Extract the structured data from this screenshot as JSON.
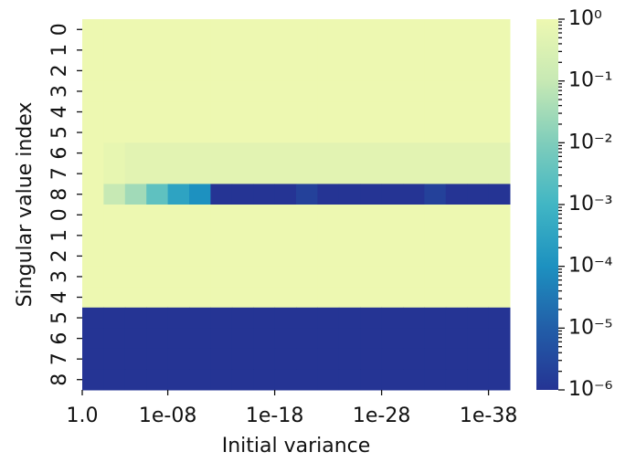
{
  "chart_data": {
    "type": "heatmap",
    "xlabel": "Initial variance",
    "ylabel": "Singular value index",
    "rows": [
      "0",
      "1",
      "2",
      "3",
      "4",
      "5",
      "6",
      "7",
      "8",
      "0",
      "1",
      "2",
      "3",
      "4",
      "5",
      "6",
      "7",
      "8"
    ],
    "xlim": [
      0,
      20
    ],
    "xticks": [
      {
        "value": 0,
        "label": "1.0"
      },
      {
        "value": 4,
        "label": "1e-08"
      },
      {
        "value": 9,
        "label": "1e-18"
      },
      {
        "value": 14,
        "label": "1e-28"
      },
      {
        "value": 19,
        "label": "1e-38"
      }
    ],
    "colormap": [
      "#edf8b1",
      "#c7e9b4",
      "#7fcdbb",
      "#41b6c4",
      "#1d91c0",
      "#225ea8",
      "#253494"
    ],
    "color_log": true,
    "clim": [
      1e-06,
      1
    ],
    "cticks": [
      {
        "value": 1,
        "label": "10⁰"
      },
      {
        "value": 0.1,
        "label": "10⁻¹"
      },
      {
        "value": 0.01,
        "label": "10⁻²"
      },
      {
        "value": 0.001,
        "label": "10⁻³"
      },
      {
        "value": 0.0001,
        "label": "10⁻⁴"
      },
      {
        "value": 1e-05,
        "label": "10⁻⁵"
      },
      {
        "value": 1e-06,
        "label": "10⁻⁶"
      }
    ],
    "z": [
      [
        1,
        1,
        1,
        1,
        1,
        1,
        1,
        1,
        1,
        1,
        1,
        1,
        1,
        1,
        1,
        1,
        1,
        1,
        1,
        1
      ],
      [
        1,
        1,
        1,
        1,
        1,
        1,
        1,
        1,
        1,
        1,
        1,
        1,
        1,
        1,
        1,
        1,
        1,
        1,
        1,
        1
      ],
      [
        1,
        1,
        1,
        1,
        1,
        1,
        1,
        1,
        1,
        1,
        1,
        1,
        1,
        1,
        1,
        1,
        1,
        1,
        1,
        1
      ],
      [
        1,
        1,
        1,
        1,
        1,
        1,
        1,
        1,
        1,
        1,
        1,
        1,
        1,
        1,
        1,
        1,
        1,
        1,
        1,
        1
      ],
      [
        1,
        1,
        1,
        1,
        1,
        1,
        1,
        1,
        1,
        1,
        1,
        1,
        1,
        1,
        1,
        1,
        1,
        1,
        1,
        1
      ],
      [
        1,
        1,
        1,
        1,
        1,
        1,
        1,
        1,
        1,
        1,
        1,
        1,
        1,
        1,
        1,
        1,
        1,
        1,
        1,
        1
      ],
      [
        1,
        0.7,
        0.5,
        0.5,
        0.5,
        0.5,
        0.5,
        0.5,
        0.5,
        0.5,
        0.5,
        0.5,
        0.5,
        0.5,
        0.5,
        0.5,
        0.5,
        0.5,
        0.5,
        0.5
      ],
      [
        1,
        0.7,
        0.5,
        0.5,
        0.5,
        0.5,
        0.5,
        0.5,
        0.5,
        0.5,
        0.5,
        0.5,
        0.5,
        0.5,
        0.5,
        0.5,
        0.5,
        0.5,
        0.5,
        0.5
      ],
      [
        1,
        0.1,
        0.03,
        0.003,
        0.0003,
        0.0001,
        1e-06,
        1e-06,
        1e-06,
        1e-06,
        2e-06,
        1e-06,
        1e-06,
        1e-06,
        1e-06,
        1e-06,
        2e-06,
        1e-06,
        1e-06,
        1e-06
      ],
      [
        1,
        1,
        1,
        1,
        1,
        1,
        1,
        1,
        1,
        1,
        1,
        1,
        1,
        1,
        1,
        1,
        1,
        1,
        1,
        1
      ],
      [
        1,
        1,
        1,
        1,
        1,
        1,
        1,
        1,
        1,
        1,
        1,
        1,
        1,
        1,
        1,
        1,
        1,
        1,
        1,
        1
      ],
      [
        1,
        1,
        1,
        1,
        1,
        1,
        1,
        1,
        1,
        1,
        1,
        1,
        1,
        1,
        1,
        1,
        1,
        1,
        1,
        1
      ],
      [
        1,
        1,
        1,
        1,
        1,
        1,
        1,
        1,
        1,
        1,
        1,
        1,
        1,
        1,
        1,
        1,
        1,
        1,
        1,
        1
      ],
      [
        1,
        1,
        1,
        1,
        1,
        1,
        1,
        1,
        1,
        1,
        1,
        1,
        1,
        1,
        1,
        1,
        1,
        1,
        1,
        1
      ],
      [
        1e-06,
        1e-06,
        1e-06,
        1e-06,
        1e-06,
        1e-06,
        1e-06,
        1e-06,
        1e-06,
        1e-06,
        1e-06,
        1e-06,
        1e-06,
        1e-06,
        1e-06,
        1e-06,
        1e-06,
        1e-06,
        1e-06,
        1e-06
      ],
      [
        1e-06,
        1e-06,
        1e-06,
        1e-06,
        1e-06,
        1e-06,
        1e-06,
        1e-06,
        1e-06,
        1e-06,
        1e-06,
        1e-06,
        1e-06,
        1e-06,
        1e-06,
        1e-06,
        1e-06,
        1e-06,
        1e-06,
        1e-06
      ],
      [
        1e-06,
        1e-06,
        1e-06,
        1e-06,
        1e-06,
        1e-06,
        1e-06,
        1e-06,
        1e-06,
        1e-06,
        1e-06,
        1e-06,
        1e-06,
        1e-06,
        1e-06,
        1e-06,
        1e-06,
        1e-06,
        1e-06,
        1e-06
      ],
      [
        1e-06,
        1e-06,
        1e-06,
        1e-06,
        1e-06,
        1e-06,
        1e-06,
        1e-06,
        1e-06,
        1e-06,
        1e-06,
        1e-06,
        1e-06,
        1e-06,
        1e-06,
        1e-06,
        1e-06,
        1e-06,
        1e-06,
        1e-06
      ]
    ]
  }
}
